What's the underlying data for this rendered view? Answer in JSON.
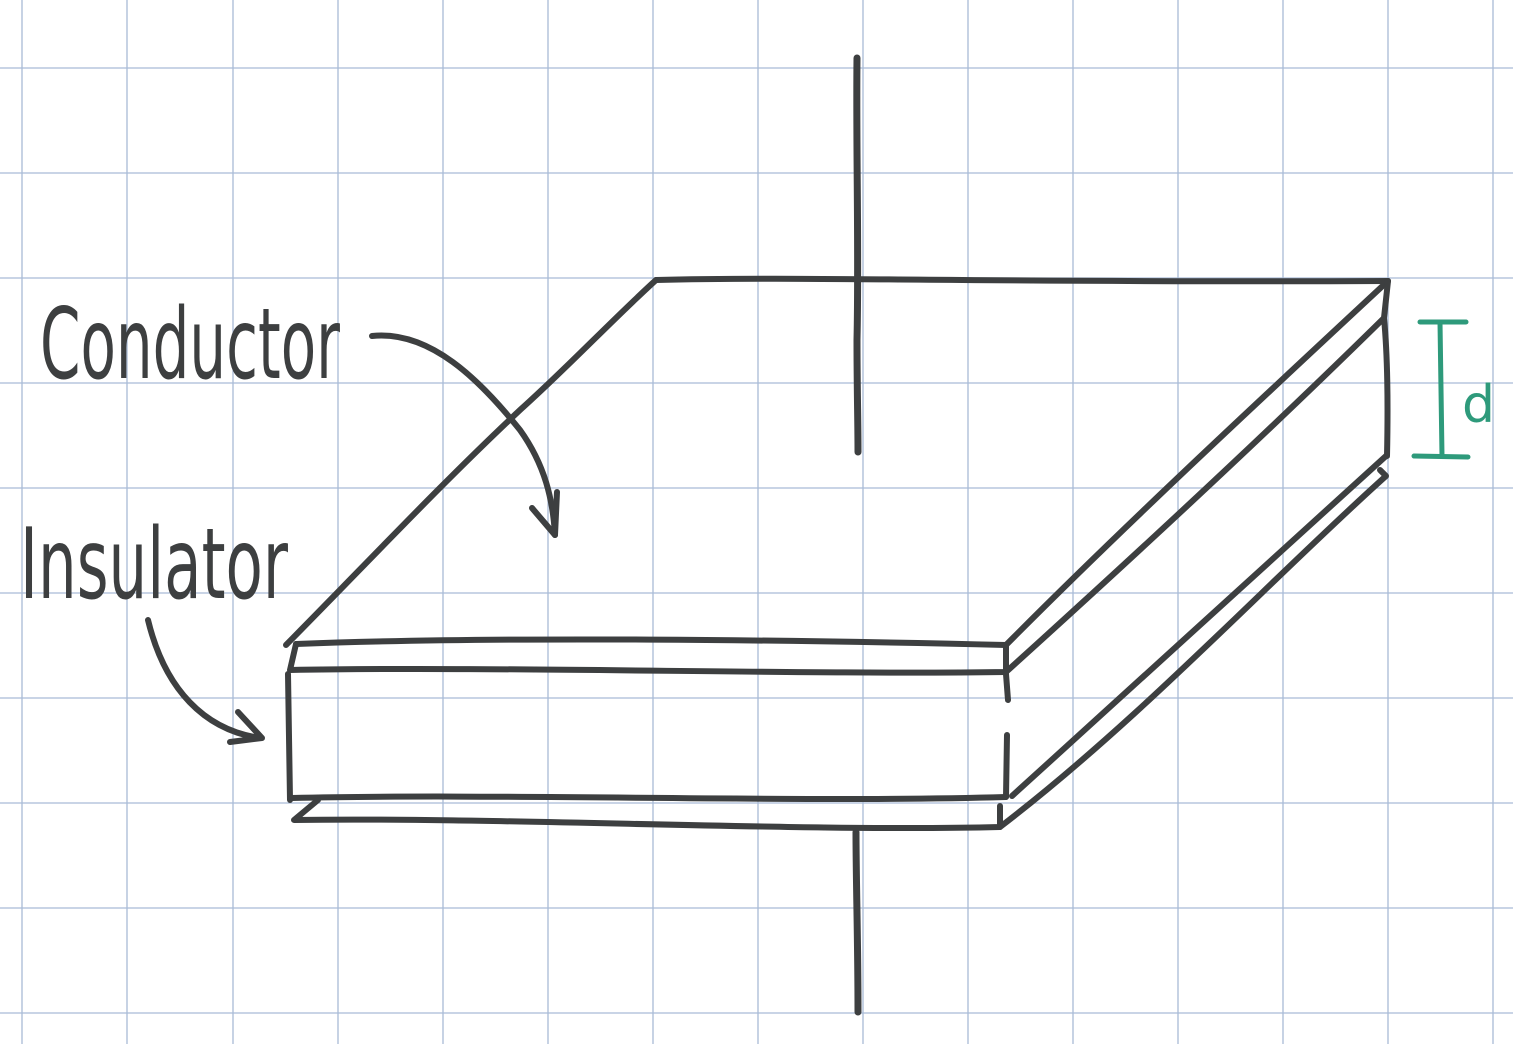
{
  "labels": {
    "conductor": "Conductor",
    "insulator": "Insulator",
    "separation": "d"
  },
  "colors": {
    "grid": "#a9bbd6",
    "ink": "#3d3f40",
    "accent": "#2e9a7b",
    "paper": "#ffffff"
  },
  "icons": {
    "conductor_arrow": "curved-arrow-icon",
    "insulator_arrow": "curved-arrow-icon",
    "separation_bracket": "dimension-bracket-icon"
  }
}
